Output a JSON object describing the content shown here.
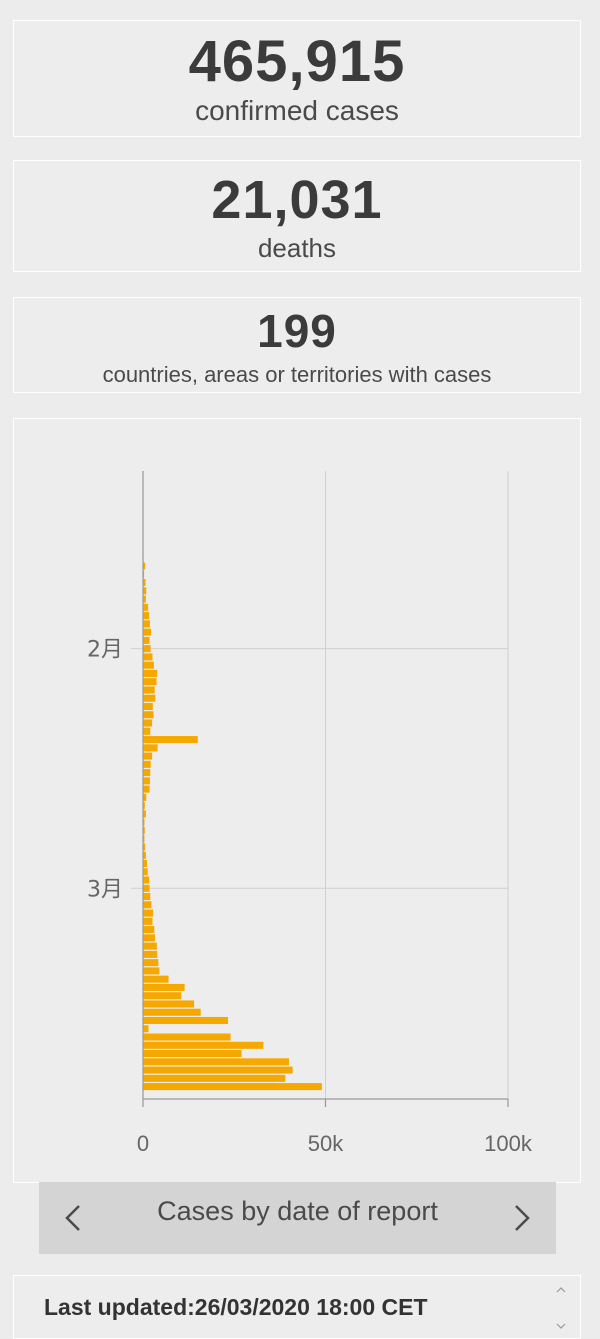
{
  "stats": {
    "confirmed": {
      "value": "465,915",
      "label": "confirmed cases"
    },
    "deaths": {
      "value": "21,031",
      "label": "deaths"
    },
    "countries": {
      "value": "199",
      "label": "countries, areas or territories with cases"
    }
  },
  "chart_nav": {
    "title": "Cases by date of report"
  },
  "footer": {
    "text": "Last updated:26/03/2020 18:00 CET"
  },
  "colors": {
    "bar": "#f5a800",
    "background": "#ececec",
    "grid": "#d0d0d0"
  },
  "chart_data": {
    "type": "bar",
    "orientation": "horizontal",
    "title": "Cases by date of report",
    "xlabel": "",
    "ylabel": "",
    "xlim": [
      0,
      100000
    ],
    "x_ticks": [
      0,
      50000,
      100000
    ],
    "x_tick_labels": [
      "0",
      "50k",
      "100k"
    ],
    "y_tick_labels": [
      {
        "label": "2月",
        "date": "2020-02-01"
      },
      {
        "label": "3月",
        "date": "2020-03-01"
      }
    ],
    "categories": [
      "2020-01-11",
      "2020-01-12",
      "2020-01-13",
      "2020-01-14",
      "2020-01-15",
      "2020-01-16",
      "2020-01-17",
      "2020-01-18",
      "2020-01-19",
      "2020-01-20",
      "2020-01-21",
      "2020-01-22",
      "2020-01-23",
      "2020-01-24",
      "2020-01-25",
      "2020-01-26",
      "2020-01-27",
      "2020-01-28",
      "2020-01-29",
      "2020-01-30",
      "2020-01-31",
      "2020-02-01",
      "2020-02-02",
      "2020-02-03",
      "2020-02-04",
      "2020-02-05",
      "2020-02-06",
      "2020-02-07",
      "2020-02-08",
      "2020-02-09",
      "2020-02-10",
      "2020-02-11",
      "2020-02-12",
      "2020-02-13",
      "2020-02-14",
      "2020-02-15",
      "2020-02-16",
      "2020-02-17",
      "2020-02-18",
      "2020-02-19",
      "2020-02-20",
      "2020-02-21",
      "2020-02-22",
      "2020-02-23",
      "2020-02-24",
      "2020-02-25",
      "2020-02-26",
      "2020-02-27",
      "2020-02-28",
      "2020-02-29",
      "2020-03-01",
      "2020-03-02",
      "2020-03-03",
      "2020-03-04",
      "2020-03-05",
      "2020-03-06",
      "2020-03-07",
      "2020-03-08",
      "2020-03-09",
      "2020-03-10",
      "2020-03-11",
      "2020-03-12",
      "2020-03-13",
      "2020-03-14",
      "2020-03-15",
      "2020-03-16",
      "2020-03-17",
      "2020-03-18",
      "2020-03-19",
      "2020-03-20",
      "2020-03-21",
      "2020-03-22",
      "2020-03-23",
      "2020-03-24",
      "2020-03-25",
      "2020-03-26"
    ],
    "values": [
      0,
      0,
      0,
      0,
      0,
      0,
      0,
      0,
      0,
      0,
      150,
      600,
      300,
      700,
      900,
      800,
      1400,
      1700,
      1900,
      2200,
      1800,
      2100,
      2600,
      3000,
      3900,
      3700,
      3200,
      3400,
      2700,
      2900,
      2500,
      2000,
      15000,
      4000,
      2500,
      2100,
      2000,
      1900,
      1800,
      900,
      500,
      800,
      400,
      500,
      400,
      600,
      800,
      1100,
      1300,
      1700,
      1800,
      2000,
      2300,
      2800,
      2600,
      3100,
      3300,
      3800,
      3900,
      4200,
      4500,
      7000,
      11400,
      10500,
      14000,
      15800,
      23300,
      1500,
      24000,
      33000,
      27000,
      40000,
      41000,
      39000,
      49000,
      0
    ]
  }
}
